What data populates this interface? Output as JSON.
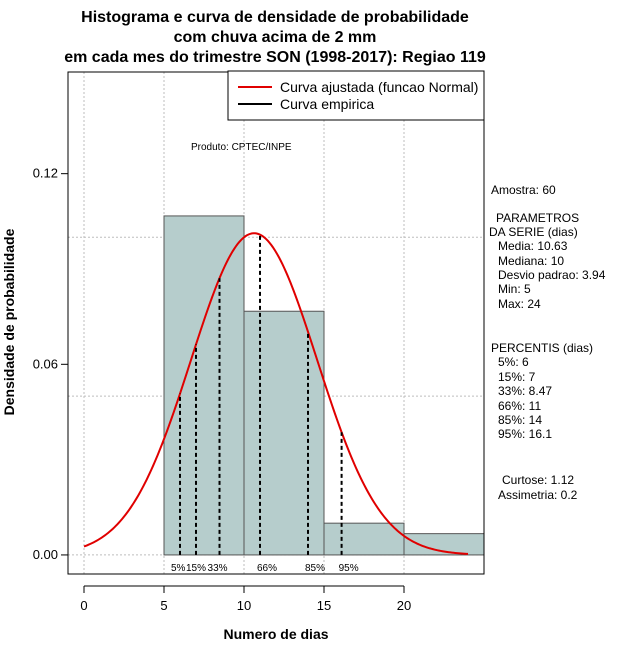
{
  "chart_data": {
    "type": "bar",
    "title_lines": [
      "Histograma e curva de densidade de probabilidade",
      "com chuva acima de 2 mm",
      "em cada mes do trimestre SON (1998-2017): Regiao 119"
    ],
    "xlabel": "Numero de dias",
    "ylabel": "Densidade de probabilidade",
    "xlim": [
      -1,
      25
    ],
    "ylim": [
      -0.006,
      0.152
    ],
    "x_ticks": [
      0,
      5,
      10,
      15,
      20
    ],
    "y_ticks": [
      0.0,
      0.06,
      0.12
    ],
    "y_tick_labels": [
      "0.00",
      "0.06",
      "0.12"
    ],
    "x_grid": [
      0,
      5,
      10,
      15,
      20
    ],
    "y_grid": [
      0.0,
      0.05,
      0.1
    ],
    "histogram": {
      "bins": [
        [
          5,
          10
        ],
        [
          10,
          15
        ],
        [
          15,
          20
        ],
        [
          20,
          25
        ]
      ],
      "density": [
        0.1067,
        0.0767,
        0.01,
        0.0067
      ],
      "fill": "#b6cdcc",
      "edge": "#555555"
    },
    "normal_curve": {
      "name": "Curva ajustada (funcao Normal)",
      "mean": 10.63,
      "sd": 3.94,
      "x_range": [
        0,
        24
      ],
      "color": "#e00000"
    },
    "percentiles": [
      {
        "label": "5%",
        "x": 6
      },
      {
        "label": "15%",
        "x": 7
      },
      {
        "label": "33%",
        "x": 8.47
      },
      {
        "label": "66%",
        "x": 11
      },
      {
        "label": "85%",
        "x": 14
      },
      {
        "label": "95%",
        "x": 16.1
      }
    ],
    "legend": {
      "position": "top-right",
      "entries": [
        {
          "label": "Curva ajustada (funcao Normal)",
          "color": "#e00000"
        },
        {
          "label": "Curva empirica",
          "color": "#000000"
        }
      ]
    },
    "annotation": "Produto: CPTEC/INPE",
    "grid": true
  },
  "side_panel": {
    "sample": "Amostra: 60",
    "params_title_1": "PARAMETROS",
    "params_title_2": "DA SERIE (dias)",
    "media": "Media: 10.63",
    "mediana": "Mediana: 10",
    "desvio": "Desvio padrao: 3.94",
    "min": "Min: 5",
    "max": "Max: 24",
    "perc_title": "PERCENTIS (dias)",
    "p5": "5%: 6",
    "p15": "15%: 7",
    "p33": "33%: 8.47",
    "p66": "66%: 11",
    "p85": "85%: 14",
    "p95": "95%: 16.1",
    "curtose": "Curtose: 1.12",
    "assimetria": "Assimetria: 0.2"
  }
}
